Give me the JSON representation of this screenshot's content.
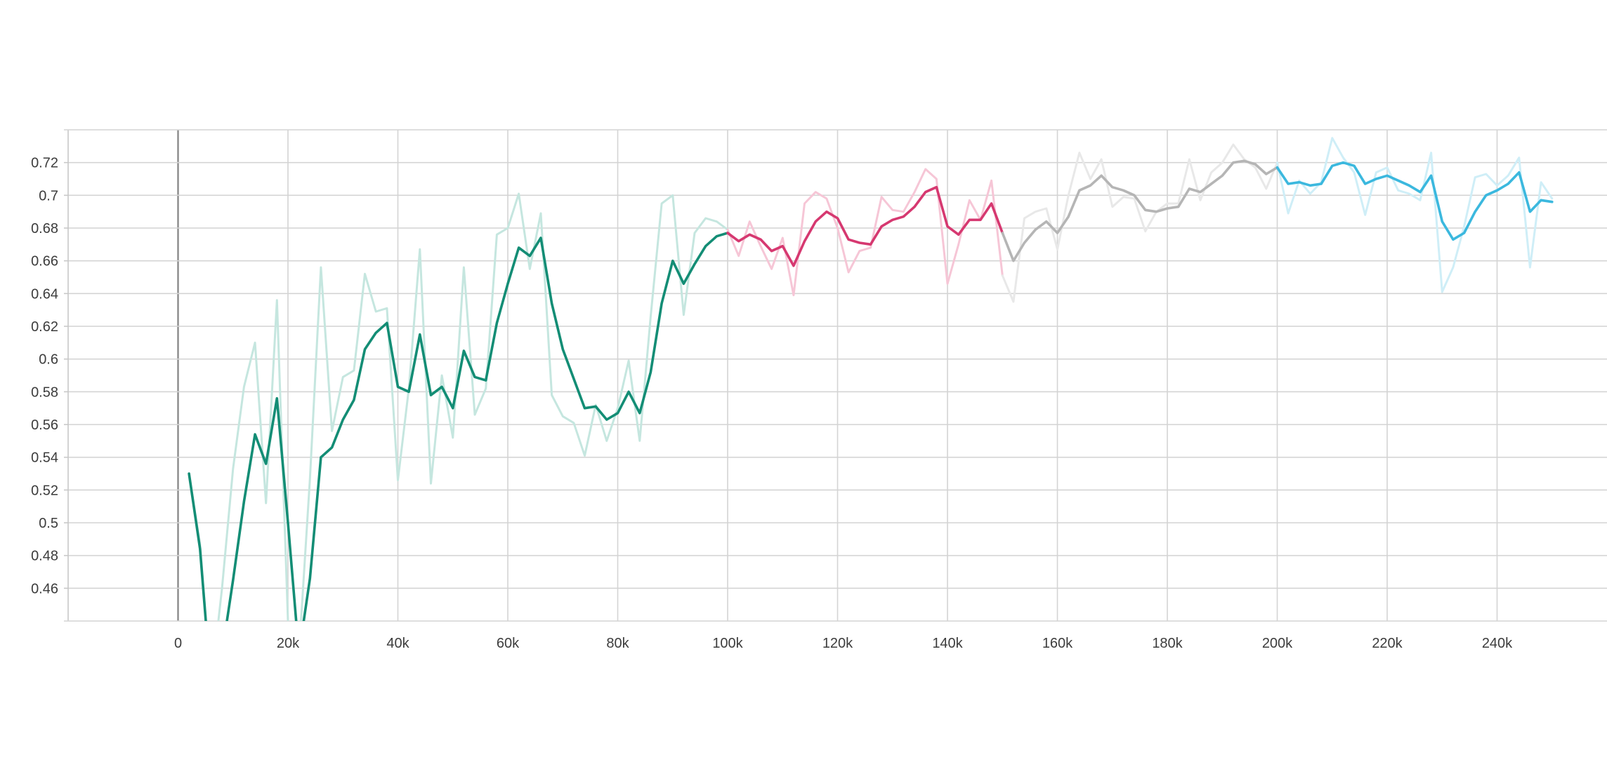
{
  "chart_data": {
    "type": "line",
    "title": "",
    "xlabel": "",
    "ylabel": "",
    "xlim": [
      -20000,
      260000
    ],
    "ylim": [
      0.44,
      0.74
    ],
    "grid": true,
    "legend": "none",
    "x_ticks": [
      0,
      20000,
      40000,
      60000,
      80000,
      100000,
      120000,
      140000,
      160000,
      180000,
      200000,
      220000,
      240000
    ],
    "x_tick_labels": [
      "0",
      "20k",
      "40k",
      "60k",
      "80k",
      "100k",
      "120k",
      "140k",
      "160k",
      "180k",
      "200k",
      "220k",
      "240k"
    ],
    "y_ticks": [
      0.46,
      0.48,
      0.5,
      0.52,
      0.54,
      0.56,
      0.58,
      0.6,
      0.62,
      0.64,
      0.66,
      0.68,
      0.7,
      0.72
    ],
    "y_tick_labels": [
      "0.46",
      "0.48",
      "0.5",
      "0.52",
      "0.54",
      "0.56",
      "0.58",
      "0.6",
      "0.62",
      "0.64",
      "0.66",
      "0.68",
      "0.7",
      "0.72"
    ],
    "series": [
      {
        "color": "#138d75",
        "raw_color": "#c5e6df",
        "x": [
          2000,
          4000,
          6000,
          8000,
          10000,
          12000,
          14000,
          16000,
          18000,
          20000,
          22000,
          24000,
          26000,
          28000,
          30000,
          32000,
          34000,
          36000,
          38000,
          40000,
          42000,
          44000,
          46000,
          48000,
          50000,
          52000,
          54000,
          56000,
          58000,
          60000,
          62000,
          64000,
          66000,
          68000,
          70000,
          72000,
          74000,
          76000,
          78000,
          80000,
          82000,
          84000,
          86000,
          88000,
          90000,
          92000,
          94000,
          96000,
          98000,
          100000
        ],
        "smoothed": [
          0.53,
          0.484,
          0.4,
          0.42,
          0.465,
          0.513,
          0.554,
          0.536,
          0.576,
          0.5,
          0.42,
          0.466,
          0.54,
          0.546,
          0.563,
          0.575,
          0.606,
          0.616,
          0.622,
          0.583,
          0.58,
          0.615,
          0.578,
          0.583,
          0.57,
          0.605,
          0.589,
          0.587,
          0.622,
          0.646,
          0.668,
          0.663,
          0.674,
          0.634,
          0.606,
          0.588,
          0.57,
          0.571,
          0.563,
          0.567,
          0.58,
          0.567,
          0.592,
          0.634,
          0.66,
          0.646,
          0.658,
          0.669,
          0.675,
          0.677
        ],
        "raw": [
          0.53,
          0.487,
          0.4,
          0.46,
          0.533,
          0.583,
          0.61,
          0.512,
          0.636,
          0.44,
          0.42,
          0.527,
          0.656,
          0.556,
          0.589,
          0.593,
          0.652,
          0.629,
          0.631,
          0.526,
          0.582,
          0.667,
          0.524,
          0.59,
          0.552,
          0.656,
          0.566,
          0.582,
          0.676,
          0.68,
          0.701,
          0.655,
          0.689,
          0.578,
          0.565,
          0.561,
          0.541,
          0.572,
          0.55,
          0.57,
          0.599,
          0.55,
          0.626,
          0.695,
          0.7,
          0.627,
          0.677,
          0.686,
          0.684,
          0.679
        ]
      },
      {
        "color": "#d63870",
        "raw_color": "#f6c6d6",
        "x": [
          100000,
          102000,
          104000,
          106000,
          108000,
          110000,
          112000,
          114000,
          116000,
          118000,
          120000,
          122000,
          124000,
          126000,
          128000,
          130000,
          132000,
          134000,
          136000,
          138000,
          140000,
          142000,
          144000,
          146000,
          148000,
          150000
        ],
        "smoothed": [
          0.677,
          0.672,
          0.676,
          0.673,
          0.666,
          0.669,
          0.657,
          0.672,
          0.684,
          0.69,
          0.686,
          0.673,
          0.671,
          0.67,
          0.681,
          0.685,
          0.687,
          0.693,
          0.702,
          0.705,
          0.681,
          0.676,
          0.685,
          0.685,
          0.695,
          0.677
        ],
        "raw": [
          0.679,
          0.663,
          0.684,
          0.669,
          0.655,
          0.674,
          0.639,
          0.695,
          0.702,
          0.698,
          0.68,
          0.653,
          0.666,
          0.668,
          0.699,
          0.691,
          0.69,
          0.702,
          0.716,
          0.71,
          0.646,
          0.67,
          0.697,
          0.685,
          0.709,
          0.651
        ]
      },
      {
        "color": "#b5b5b5",
        "raw_color": "#e8e8e8",
        "x": [
          150000,
          152000,
          154000,
          156000,
          158000,
          160000,
          162000,
          164000,
          166000,
          168000,
          170000,
          172000,
          174000,
          176000,
          178000,
          180000,
          182000,
          184000,
          186000,
          188000,
          190000,
          192000,
          194000,
          196000,
          198000,
          200000
        ],
        "smoothed": [
          0.677,
          0.66,
          0.671,
          0.679,
          0.684,
          0.677,
          0.687,
          0.703,
          0.706,
          0.712,
          0.705,
          0.703,
          0.7,
          0.691,
          0.69,
          0.692,
          0.693,
          0.704,
          0.702,
          0.707,
          0.712,
          0.72,
          0.721,
          0.719,
          0.713,
          0.717
        ],
        "raw": [
          0.651,
          0.635,
          0.686,
          0.69,
          0.692,
          0.667,
          0.7,
          0.726,
          0.71,
          0.722,
          0.693,
          0.699,
          0.698,
          0.678,
          0.69,
          0.695,
          0.695,
          0.722,
          0.697,
          0.714,
          0.72,
          0.731,
          0.722,
          0.717,
          0.704,
          0.72
        ]
      },
      {
        "color": "#3bb8de",
        "raw_color": "#cfeef7",
        "x": [
          200000,
          202000,
          204000,
          206000,
          208000,
          210000,
          212000,
          214000,
          216000,
          218000,
          220000,
          222000,
          224000,
          226000,
          228000,
          230000,
          232000,
          234000,
          236000,
          238000,
          240000,
          242000,
          244000,
          246000,
          248000,
          250000
        ],
        "smoothed": [
          0.717,
          0.707,
          0.708,
          0.706,
          0.707,
          0.718,
          0.72,
          0.718,
          0.707,
          0.71,
          0.712,
          0.709,
          0.706,
          0.702,
          0.712,
          0.684,
          0.673,
          0.677,
          0.69,
          0.7,
          0.703,
          0.707,
          0.714,
          0.69,
          0.697,
          0.696
        ],
        "raw": [
          0.72,
          0.689,
          0.709,
          0.701,
          0.708,
          0.735,
          0.723,
          0.714,
          0.688,
          0.714,
          0.717,
          0.703,
          0.701,
          0.697,
          0.726,
          0.641,
          0.656,
          0.681,
          0.711,
          0.713,
          0.706,
          0.712,
          0.723,
          0.656,
          0.708,
          0.698
        ]
      }
    ]
  }
}
